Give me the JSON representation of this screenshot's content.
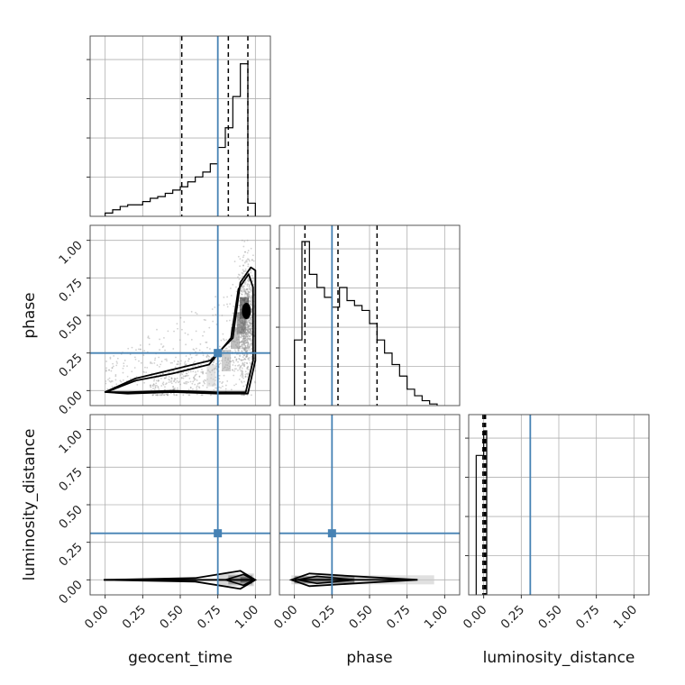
{
  "chart_data": {
    "type": "corner",
    "parameters": [
      "geocent_time",
      "phase",
      "luminosity_distance"
    ],
    "xlabels": [
      "geocent_time",
      "phase",
      "luminosity_distance"
    ],
    "ylabels": [
      "",
      "phase",
      "luminosity_distance"
    ],
    "tick_labels": [
      "0.00",
      "0.25",
      "0.50",
      "0.75",
      "1.00"
    ],
    "axis_range": [
      -0.1,
      1.1
    ],
    "truths": {
      "geocent_time": 0.75,
      "phase": 0.25,
      "luminosity_distance": 0.31
    },
    "truth_color": "#4682b4",
    "grid": true,
    "histograms": [
      {
        "parameter": "geocent_time",
        "bin_edges": [
          0.0,
          0.05,
          0.1,
          0.15,
          0.2,
          0.25,
          0.3,
          0.35,
          0.4,
          0.45,
          0.5,
          0.55,
          0.6,
          0.65,
          0.7,
          0.75,
          0.8,
          0.85,
          0.9,
          0.95,
          1.0
        ],
        "counts": [
          0.02,
          0.04,
          0.06,
          0.07,
          0.07,
          0.09,
          0.11,
          0.12,
          0.14,
          0.16,
          0.18,
          0.21,
          0.24,
          0.27,
          0.32,
          0.42,
          0.54,
          0.73,
          0.93,
          0.08
        ],
        "quantiles": [
          0.51,
          0.82,
          0.95
        ]
      },
      {
        "parameter": "phase",
        "bin_edges": [
          0.0,
          0.05,
          0.1,
          0.15,
          0.2,
          0.25,
          0.3,
          0.35,
          0.4,
          0.45,
          0.5,
          0.55,
          0.6,
          0.65,
          0.7,
          0.75,
          0.8,
          0.85,
          0.9,
          0.95
        ],
        "counts": [
          0.4,
          1.0,
          0.8,
          0.72,
          0.66,
          0.6,
          0.72,
          0.64,
          0.61,
          0.58,
          0.5,
          0.4,
          0.32,
          0.25,
          0.18,
          0.1,
          0.06,
          0.03,
          0.01
        ],
        "quantiles": [
          0.07,
          0.29,
          0.55
        ]
      },
      {
        "parameter": "luminosity_distance",
        "bin_edges": [
          -0.05,
          0.0,
          0.02
        ],
        "counts": [
          0.85,
          1.0
        ],
        "quantiles": [
          -0.005,
          0.005,
          0.012
        ]
      }
    ],
    "contours_2d": [
      {
        "x": "geocent_time",
        "y": "phase",
        "mode": {
          "x": 0.94,
          "y": 0.53
        }
      },
      {
        "x": "geocent_time",
        "y": "luminosity_distance",
        "mode": {
          "x": 0.94,
          "y": 0.0
        }
      },
      {
        "x": "phase",
        "y": "luminosity_distance",
        "mode": {
          "x": 0.15,
          "y": 0.0
        }
      }
    ]
  }
}
